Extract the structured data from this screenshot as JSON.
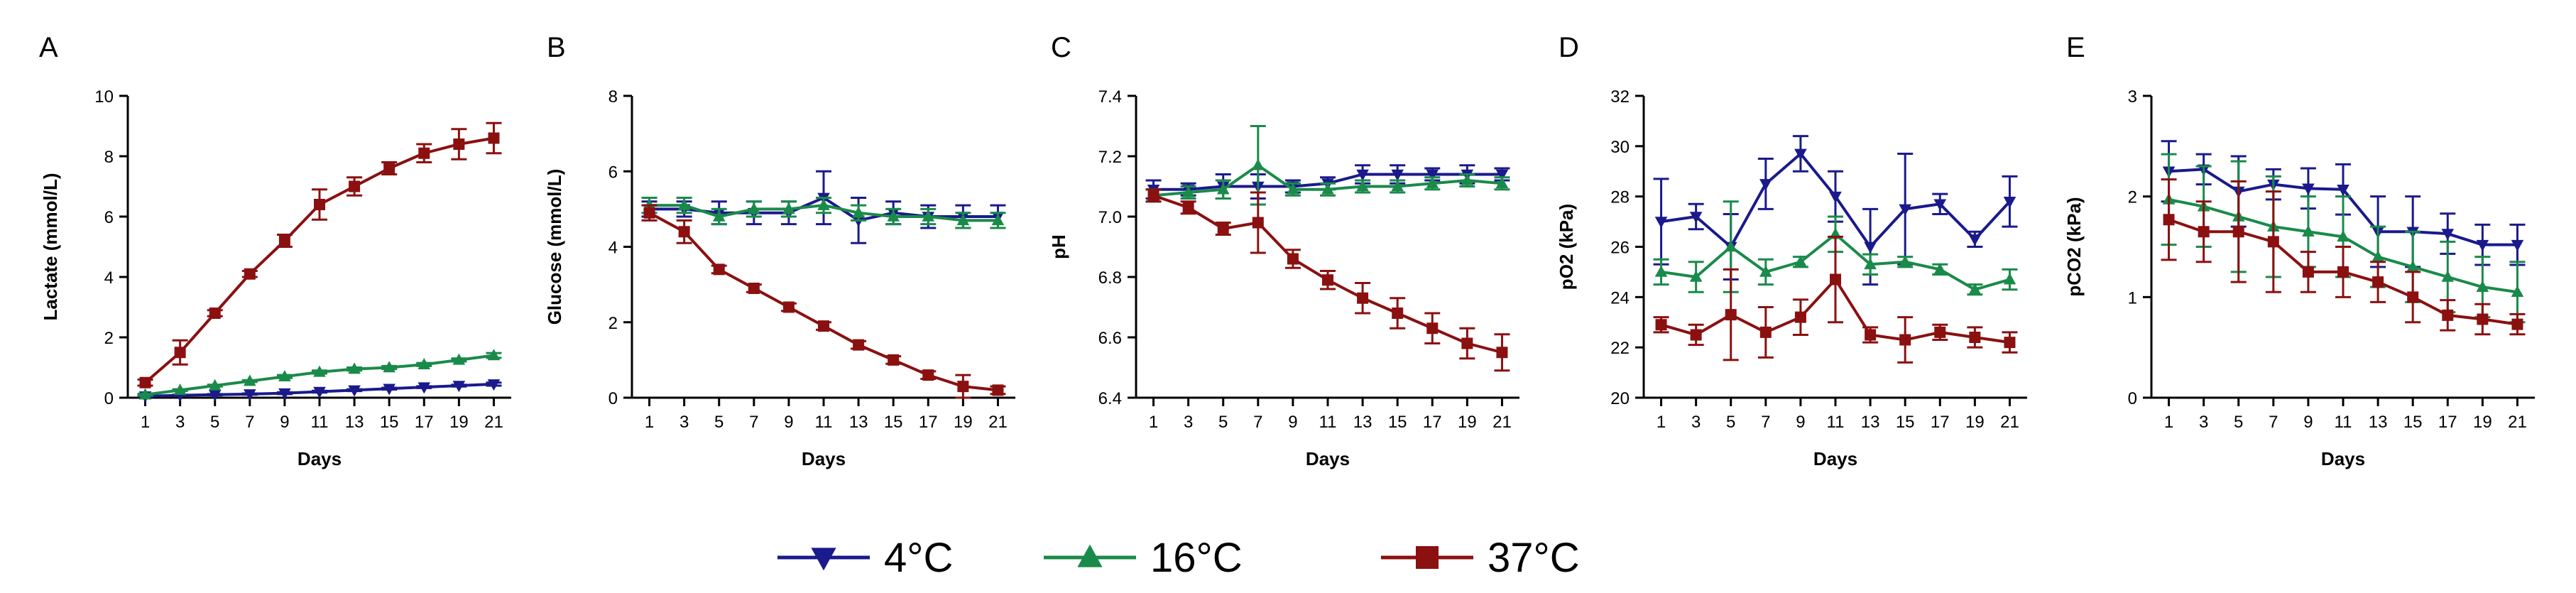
{
  "colors": {
    "4C": "#1a1a8c",
    "16C": "#1a8a4a",
    "37C": "#8b1010"
  },
  "legend": [
    {
      "key": "4C",
      "label": "4°C",
      "marker": "triangle-down"
    },
    {
      "key": "16C",
      "label": "16°C",
      "marker": "triangle-up"
    },
    {
      "key": "37C",
      "label": "37°C",
      "marker": "square"
    }
  ],
  "chart_data": [
    {
      "panel": "A",
      "type": "line",
      "xlabel": "Days",
      "ylabel": "Lactate (mmol/L)",
      "x": [
        1,
        3,
        5,
        7,
        9,
        11,
        13,
        15,
        17,
        19,
        21
      ],
      "ylim": [
        0,
        10
      ],
      "yticks": [
        0,
        2,
        4,
        6,
        8,
        10
      ],
      "series": [
        {
          "name": "4°C",
          "key": "4C",
          "values": [
            0.05,
            0.08,
            0.1,
            0.12,
            0.15,
            0.2,
            0.25,
            0.3,
            0.35,
            0.4,
            0.45
          ],
          "errors": [
            0.02,
            0.02,
            0.02,
            0.02,
            0.03,
            0.03,
            0.03,
            0.03,
            0.03,
            0.03,
            0.05
          ]
        },
        {
          "name": "16°C",
          "key": "16C",
          "values": [
            0.1,
            0.25,
            0.4,
            0.55,
            0.7,
            0.85,
            0.95,
            1.0,
            1.1,
            1.25,
            1.4
          ],
          "errors": [
            0.03,
            0.03,
            0.03,
            0.03,
            0.05,
            0.05,
            0.05,
            0.05,
            0.05,
            0.05,
            0.08
          ]
        },
        {
          "name": "37°C",
          "key": "37C",
          "values": [
            0.5,
            1.5,
            2.8,
            4.1,
            5.2,
            6.4,
            7.0,
            7.6,
            8.1,
            8.4,
            8.6
          ],
          "errors": [
            0.1,
            0.4,
            0.1,
            0.1,
            0.2,
            0.5,
            0.3,
            0.2,
            0.3,
            0.5,
            0.5
          ]
        }
      ]
    },
    {
      "panel": "B",
      "type": "line",
      "xlabel": "Days",
      "ylabel": "Glucose (mmol/L)",
      "x": [
        1,
        3,
        5,
        7,
        9,
        11,
        13,
        15,
        17,
        19,
        21
      ],
      "ylim": [
        0,
        8
      ],
      "yticks": [
        0,
        2,
        4,
        6,
        8
      ],
      "series": [
        {
          "name": "4°C",
          "key": "4C",
          "values": [
            5.0,
            5.0,
            4.9,
            4.9,
            4.9,
            5.3,
            4.7,
            4.9,
            4.8,
            4.8,
            4.8
          ],
          "errors": [
            0.2,
            0.2,
            0.3,
            0.3,
            0.3,
            0.7,
            0.6,
            0.3,
            0.3,
            0.3,
            0.3
          ]
        },
        {
          "name": "16°C",
          "key": "16C",
          "values": [
            5.1,
            5.1,
            4.8,
            5.0,
            5.0,
            5.1,
            4.9,
            4.8,
            4.8,
            4.7,
            4.7
          ],
          "errors": [
            0.2,
            0.2,
            0.2,
            0.2,
            0.2,
            0.2,
            0.2,
            0.2,
            0.2,
            0.2,
            0.2
          ]
        },
        {
          "name": "37°C",
          "key": "37C",
          "values": [
            4.9,
            4.4,
            3.4,
            2.9,
            2.4,
            1.9,
            1.4,
            1.0,
            0.6,
            0.3,
            0.2
          ],
          "errors": [
            0.2,
            0.3,
            0.1,
            0.1,
            0.1,
            0.1,
            0.1,
            0.1,
            0.1,
            0.3,
            0.1
          ]
        }
      ]
    },
    {
      "panel": "C",
      "type": "line",
      "xlabel": "Days",
      "ylabel": "pH",
      "x": [
        1,
        3,
        5,
        7,
        9,
        11,
        13,
        15,
        17,
        19,
        21
      ],
      "ylim": [
        6.4,
        7.4
      ],
      "yticks": [
        6.4,
        6.6,
        6.8,
        7.0,
        7.2,
        7.4
      ],
      "series": [
        {
          "name": "4°C",
          "key": "4C",
          "values": [
            7.09,
            7.09,
            7.1,
            7.1,
            7.1,
            7.11,
            7.14,
            7.14,
            7.14,
            7.14,
            7.14
          ],
          "errors": [
            0.03,
            0.02,
            0.04,
            0.04,
            0.02,
            0.02,
            0.03,
            0.03,
            0.02,
            0.03,
            0.02
          ]
        },
        {
          "name": "16°C",
          "key": "16C",
          "values": [
            7.07,
            7.08,
            7.09,
            7.17,
            7.09,
            7.09,
            7.1,
            7.1,
            7.11,
            7.12,
            7.11
          ],
          "errors": [
            0.02,
            0.02,
            0.03,
            0.13,
            0.02,
            0.02,
            0.02,
            0.02,
            0.02,
            0.02,
            0.02
          ]
        },
        {
          "name": "37°C",
          "key": "37C",
          "values": [
            7.07,
            7.03,
            6.96,
            6.98,
            6.86,
            6.79,
            6.73,
            6.68,
            6.63,
            6.58,
            6.55
          ],
          "errors": [
            0.02,
            0.02,
            0.02,
            0.1,
            0.03,
            0.03,
            0.05,
            0.05,
            0.05,
            0.05,
            0.06
          ]
        }
      ]
    },
    {
      "panel": "D",
      "type": "line",
      "xlabel": "Days",
      "ylabel": "pO2 (kPa)",
      "x": [
        1,
        3,
        5,
        7,
        9,
        11,
        13,
        15,
        17,
        19,
        21
      ],
      "ylim": [
        20,
        32
      ],
      "yticks": [
        20,
        22,
        24,
        26,
        28,
        30,
        32
      ],
      "series": [
        {
          "name": "4°C",
          "key": "4C",
          "values": [
            27.0,
            27.2,
            26.0,
            28.5,
            29.7,
            28.0,
            26.0,
            27.5,
            27.7,
            26.3,
            27.8
          ],
          "errors": [
            1.7,
            0.5,
            1.3,
            1.0,
            0.7,
            1.0,
            1.5,
            2.2,
            0.4,
            0.3,
            1.0
          ]
        },
        {
          "name": "16°C",
          "key": "16C",
          "values": [
            25.0,
            24.8,
            26.0,
            25.0,
            25.4,
            26.5,
            25.3,
            25.4,
            25.1,
            24.3,
            24.7
          ],
          "errors": [
            0.5,
            0.6,
            1.8,
            0.5,
            0.2,
            0.7,
            0.4,
            0.2,
            0.2,
            0.2,
            0.4
          ]
        },
        {
          "name": "37°C",
          "key": "37C",
          "values": [
            22.9,
            22.5,
            23.3,
            22.6,
            23.2,
            24.7,
            22.5,
            22.3,
            22.6,
            22.4,
            22.2
          ],
          "errors": [
            0.3,
            0.4,
            1.8,
            1.0,
            0.7,
            1.7,
            0.3,
            0.9,
            0.3,
            0.4,
            0.4
          ]
        }
      ]
    },
    {
      "panel": "E",
      "type": "line",
      "xlabel": "Days",
      "ylabel": "pCO2 (kPa)",
      "x": [
        1,
        3,
        5,
        7,
        9,
        11,
        13,
        15,
        17,
        19,
        21
      ],
      "ylim": [
        0,
        3
      ],
      "yticks": [
        0,
        1,
        2,
        3
      ],
      "series": [
        {
          "name": "4°C",
          "key": "4C",
          "values": [
            2.25,
            2.27,
            2.05,
            2.12,
            2.08,
            2.07,
            1.65,
            1.65,
            1.63,
            1.52,
            1.52
          ],
          "errors": [
            0.3,
            0.15,
            0.35,
            0.15,
            0.2,
            0.25,
            0.35,
            0.35,
            0.2,
            0.2,
            0.2
          ]
        },
        {
          "name": "16°C",
          "key": "16C",
          "values": [
            1.97,
            1.9,
            1.8,
            1.7,
            1.65,
            1.6,
            1.4,
            1.3,
            1.2,
            1.1,
            1.05
          ],
          "errors": [
            0.45,
            0.4,
            0.55,
            0.5,
            0.35,
            0.4,
            0.3,
            0.35,
            0.35,
            0.3,
            0.3
          ]
        },
        {
          "name": "37°C",
          "key": "37C",
          "values": [
            1.77,
            1.65,
            1.65,
            1.55,
            1.25,
            1.25,
            1.15,
            1.0,
            0.82,
            0.78,
            0.73
          ],
          "errors": [
            0.4,
            0.3,
            0.5,
            0.5,
            0.2,
            0.25,
            0.2,
            0.25,
            0.15,
            0.15,
            0.1
          ]
        }
      ]
    }
  ]
}
